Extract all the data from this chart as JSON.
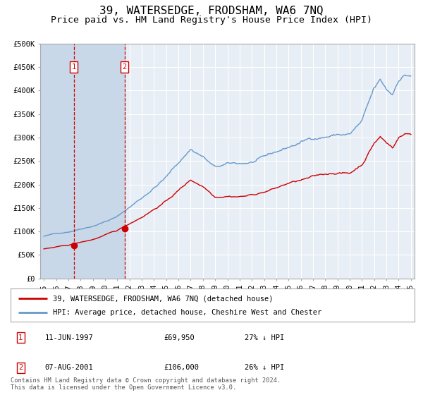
{
  "title": "39, WATERSEDGE, FRODSHAM, WA6 7NQ",
  "subtitle": "Price paid vs. HM Land Registry's House Price Index (HPI)",
  "title_fontsize": 11.5,
  "subtitle_fontsize": 9.5,
  "background_color": "#ffffff",
  "plot_bg_color": "#e8eef5",
  "grid_color": "#ffffff",
  "ylim": [
    0,
    500000
  ],
  "yticks": [
    0,
    50000,
    100000,
    150000,
    200000,
    250000,
    300000,
    350000,
    400000,
    450000,
    500000
  ],
  "ytick_labels": [
    "£0",
    "£50K",
    "£100K",
    "£150K",
    "£200K",
    "£250K",
    "£300K",
    "£350K",
    "£400K",
    "£450K",
    "£500K"
  ],
  "xlim_start": 1994.7,
  "xlim_end": 2025.3,
  "purchase1_x": 1997.44,
  "purchase1_y": 69950,
  "purchase2_x": 2001.59,
  "purchase2_y": 106000,
  "purchase1_label": "1",
  "purchase2_label": "2",
  "purchase1_date": "11-JUN-1997",
  "purchase1_price": "£69,950",
  "purchase1_hpi": "27% ↓ HPI",
  "purchase2_date": "07-AUG-2001",
  "purchase2_price": "£106,000",
  "purchase2_hpi": "26% ↓ HPI",
  "red_line_color": "#cc0000",
  "blue_line_color": "#6699cc",
  "marker_color": "#cc0000",
  "dashed_line_color": "#cc0000",
  "legend_label_red": "39, WATERSEDGE, FRODSHAM, WA6 7NQ (detached house)",
  "legend_label_blue": "HPI: Average price, detached house, Cheshire West and Chester",
  "footer_text": "Contains HM Land Registry data © Crown copyright and database right 2024.\nThis data is licensed under the Open Government Licence v3.0.",
  "shade_color": "#c8d8e8",
  "x_ticks": [
    1995,
    1996,
    1997,
    1998,
    1999,
    2000,
    2001,
    2002,
    2003,
    2004,
    2005,
    2006,
    2007,
    2008,
    2009,
    2010,
    2011,
    2012,
    2013,
    2014,
    2015,
    2016,
    2017,
    2018,
    2019,
    2020,
    2021,
    2022,
    2023,
    2024,
    2025
  ]
}
